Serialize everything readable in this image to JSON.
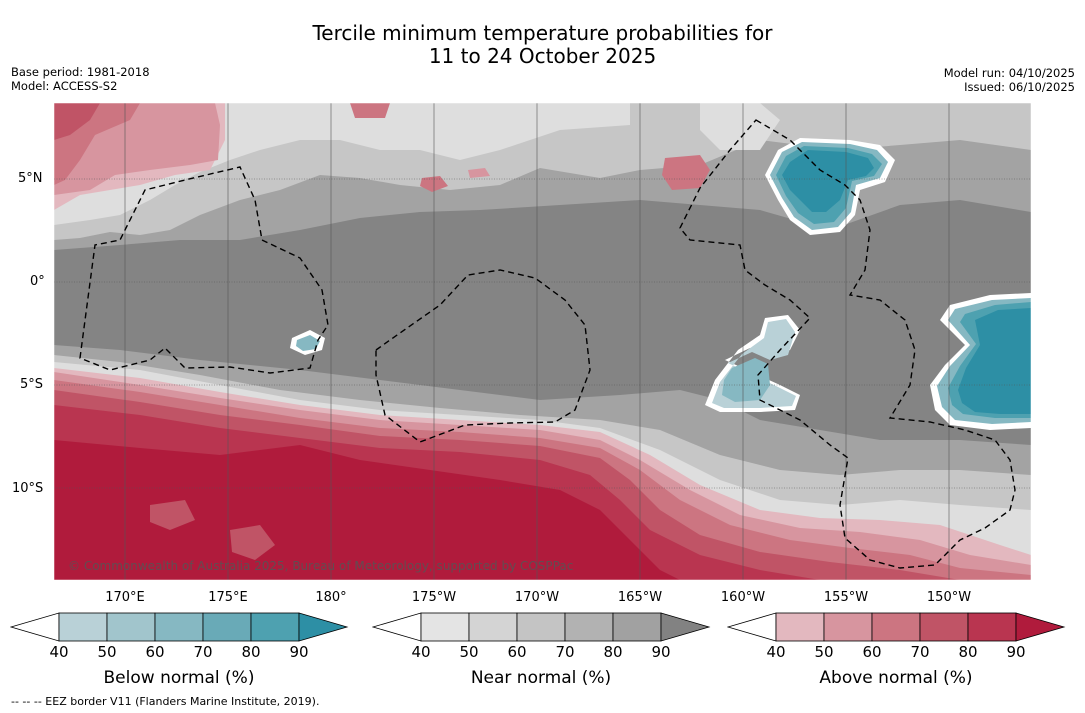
{
  "title": {
    "line1": "Tercile minimum temperature probabilities for",
    "line2": "11 to 24 October 2025"
  },
  "meta": {
    "base_period": "Base period: 1981-2018",
    "model": "Model: ACCESS-S2",
    "model_run": "Model run: 04/10/2025",
    "issued": "Issued: 06/10/2025"
  },
  "axes": {
    "lat_labels": [
      "5°N",
      "0°",
      "5°S",
      "10°S"
    ],
    "lon_labels": [
      "170°E",
      "175°E",
      "180°",
      "175°W",
      "170°W",
      "165°W",
      "160°W",
      "155°W",
      "150°W"
    ]
  },
  "copyright": "© Commonwealth of Australia 2025, Bureau of Meteorology, supported by COSPPac",
  "colorbars": [
    {
      "title": "Below normal (%)",
      "ticks": [
        "40",
        "50",
        "60",
        "70",
        "80",
        "90"
      ],
      "colors": [
        "#ffffff",
        "#b9d1d7",
        "#a1c5cc",
        "#86b8c2",
        "#69aab7",
        "#4ea1b0",
        "#2d8fa5"
      ]
    },
    {
      "title": "Near normal (%)",
      "ticks": [
        "40",
        "50",
        "60",
        "70",
        "80",
        "90"
      ],
      "colors": [
        "#ffffff",
        "#e4e4e4",
        "#d4d4d4",
        "#c4c4c4",
        "#b2b2b2",
        "#a1a1a1",
        "#828282"
      ]
    },
    {
      "title": "Above normal (%)",
      "ticks": [
        "40",
        "50",
        "60",
        "70",
        "80",
        "90"
      ],
      "colors": [
        "#ffffff",
        "#e3b8bf",
        "#d7959f",
        "#cc7581",
        "#c05466",
        "#b93550",
        "#b01b3c"
      ]
    }
  ],
  "footnote": "--  --  -- EEZ border V11 (Flanders Marine Institute, 2019)."
}
